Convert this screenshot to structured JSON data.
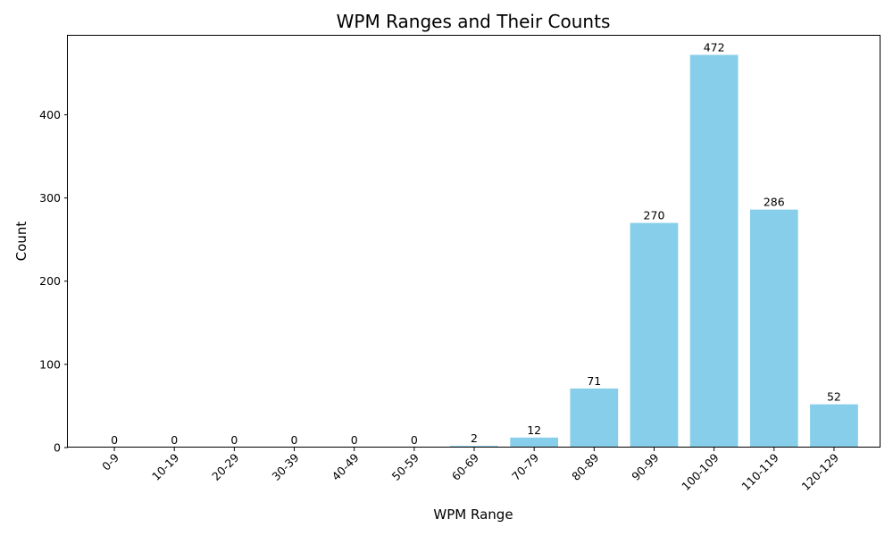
{
  "chart_data": {
    "type": "bar",
    "title": "WPM Ranges and Their Counts",
    "xlabel": "WPM Range",
    "ylabel": "Count",
    "categories": [
      "0-9",
      "10-19",
      "20-29",
      "30-39",
      "40-49",
      "50-59",
      "60-69",
      "70-79",
      "80-89",
      "90-99",
      "100-109",
      "110-119",
      "120-129"
    ],
    "values": [
      0,
      0,
      0,
      0,
      0,
      0,
      2,
      12,
      71,
      270,
      472,
      286,
      52
    ],
    "data_labels": [
      "0",
      "0",
      "0",
      "0",
      "0",
      "0",
      "2",
      "12",
      "71",
      "270",
      "472",
      "286",
      "52"
    ],
    "ylim": [
      0,
      495
    ],
    "yticks": [
      0,
      100,
      200,
      300,
      400
    ],
    "ytick_labels": [
      "0",
      "100",
      "200",
      "300",
      "400"
    ],
    "x_tick_rotation_deg": 45,
    "bar_color": "#87CEEB",
    "grid": false,
    "legend": "none"
  }
}
